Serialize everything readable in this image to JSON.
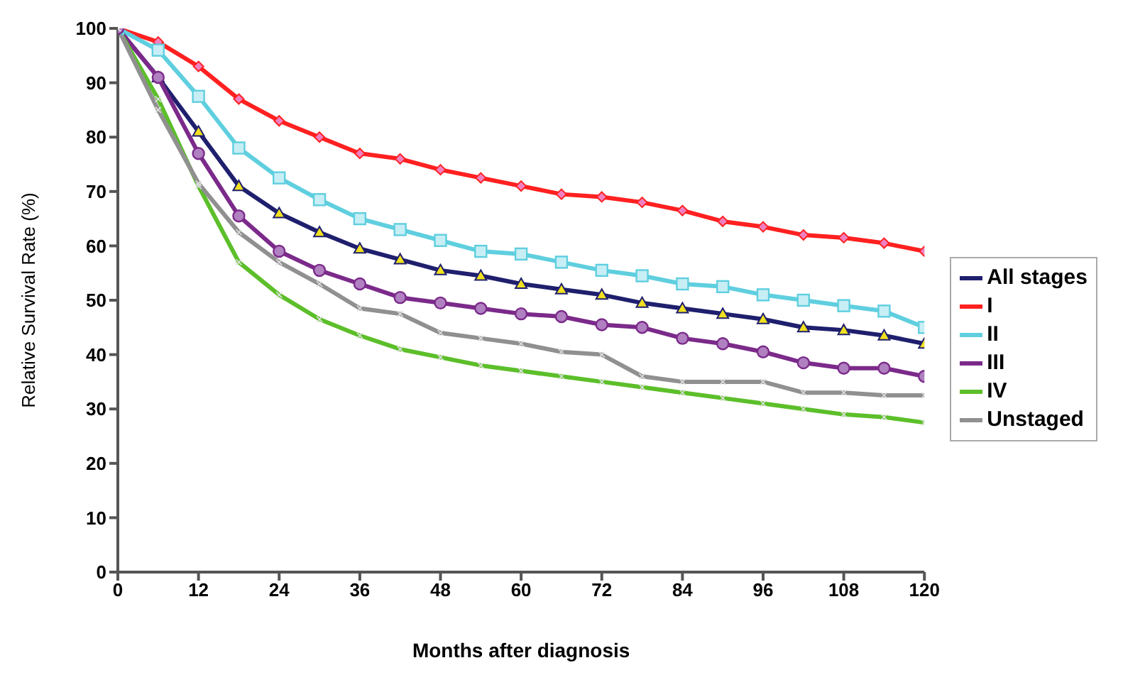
{
  "chart_data": {
    "type": "line",
    "xlabel": "Months after diagnosis",
    "ylabel": "Relative Survival Rate (%)",
    "x": [
      0,
      6,
      12,
      18,
      24,
      30,
      36,
      42,
      48,
      54,
      60,
      66,
      72,
      78,
      84,
      90,
      96,
      102,
      108,
      114,
      120
    ],
    "series": [
      {
        "name": "All stages",
        "color": "#1f1f6e",
        "marker": "triangle",
        "values": [
          100,
          91,
          81,
          71,
          66,
          62.5,
          59.5,
          57.5,
          55.5,
          54.5,
          53,
          52,
          51,
          49.5,
          48.5,
          47.5,
          46.5,
          45,
          44.5,
          43.5,
          42
        ]
      },
      {
        "name": "I",
        "color": "#ff2020",
        "marker": "diamond",
        "values": [
          100,
          97.5,
          93,
          87,
          83,
          80,
          77,
          76,
          74,
          72.5,
          71,
          69.5,
          69,
          68,
          66.5,
          64.5,
          63.5,
          62,
          61.5,
          60.5,
          59
        ]
      },
      {
        "name": "II",
        "color": "#5fcfdf",
        "marker": "square",
        "values": [
          100,
          96,
          87.5,
          78,
          72.5,
          68.5,
          65,
          63,
          61,
          59,
          58.5,
          57,
          55.5,
          54.5,
          53,
          52.5,
          51,
          50,
          49,
          48,
          45
        ]
      },
      {
        "name": "III",
        "color": "#7b2a8a",
        "marker": "circle",
        "values": [
          100,
          91,
          77,
          65.5,
          59,
          55.5,
          53,
          50.5,
          49.5,
          48.5,
          47.5,
          47,
          45.5,
          45,
          43,
          42,
          40.5,
          38.5,
          37.5,
          37.5,
          36
        ]
      },
      {
        "name": "IV",
        "color": "#5cbf2a",
        "marker": "cross",
        "values": [
          100,
          87,
          71,
          57,
          51,
          46.5,
          43.5,
          41,
          39.5,
          38,
          37,
          36,
          35,
          34,
          33,
          32,
          31,
          30,
          29,
          28.5,
          27.5
        ]
      },
      {
        "name": "Unstaged",
        "color": "#909090",
        "marker": "cross",
        "values": [
          100,
          85,
          71.5,
          62.5,
          57,
          53,
          48.5,
          47.5,
          44,
          43,
          42,
          40.5,
          40,
          36,
          35,
          35,
          35,
          33,
          33,
          32.5,
          32.5
        ]
      }
    ],
    "xlim": [
      0,
      120
    ],
    "xticks": [
      0,
      12,
      24,
      36,
      48,
      60,
      72,
      84,
      96,
      108,
      120
    ],
    "ylim": [
      0,
      100
    ],
    "yticks": [
      0,
      10,
      20,
      30,
      40,
      50,
      60,
      70,
      80,
      90,
      100
    ],
    "grid": false,
    "legend": "right",
    "line_style": "solid"
  }
}
